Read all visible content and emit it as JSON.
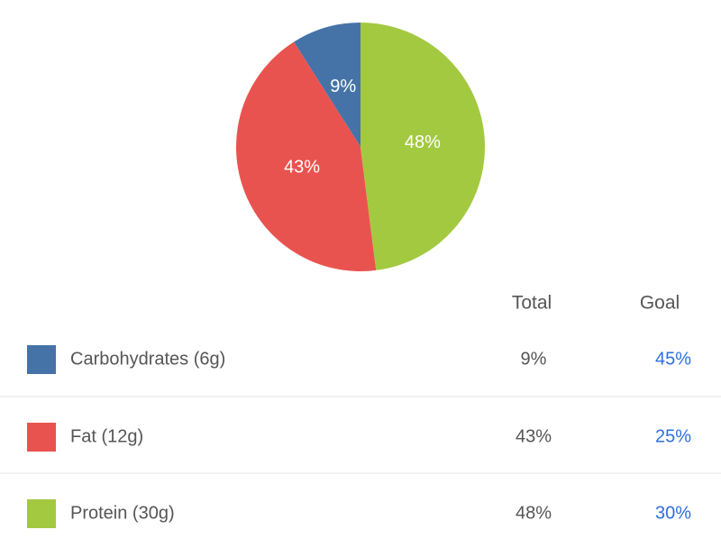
{
  "chart_data": {
    "type": "pie",
    "categories": [
      "Carbohydrates (6g)",
      "Fat (12g)",
      "Protein (30g)"
    ],
    "values": [
      9,
      43,
      48
    ],
    "value_labels": [
      "9%",
      "43%",
      "48%"
    ],
    "colors": [
      "#4573a7",
      "#e9534f",
      "#a3c940"
    ]
  },
  "table": {
    "headers": [
      "Total",
      "Goal"
    ],
    "goal": [
      "45%",
      "25%",
      "30%"
    ]
  }
}
